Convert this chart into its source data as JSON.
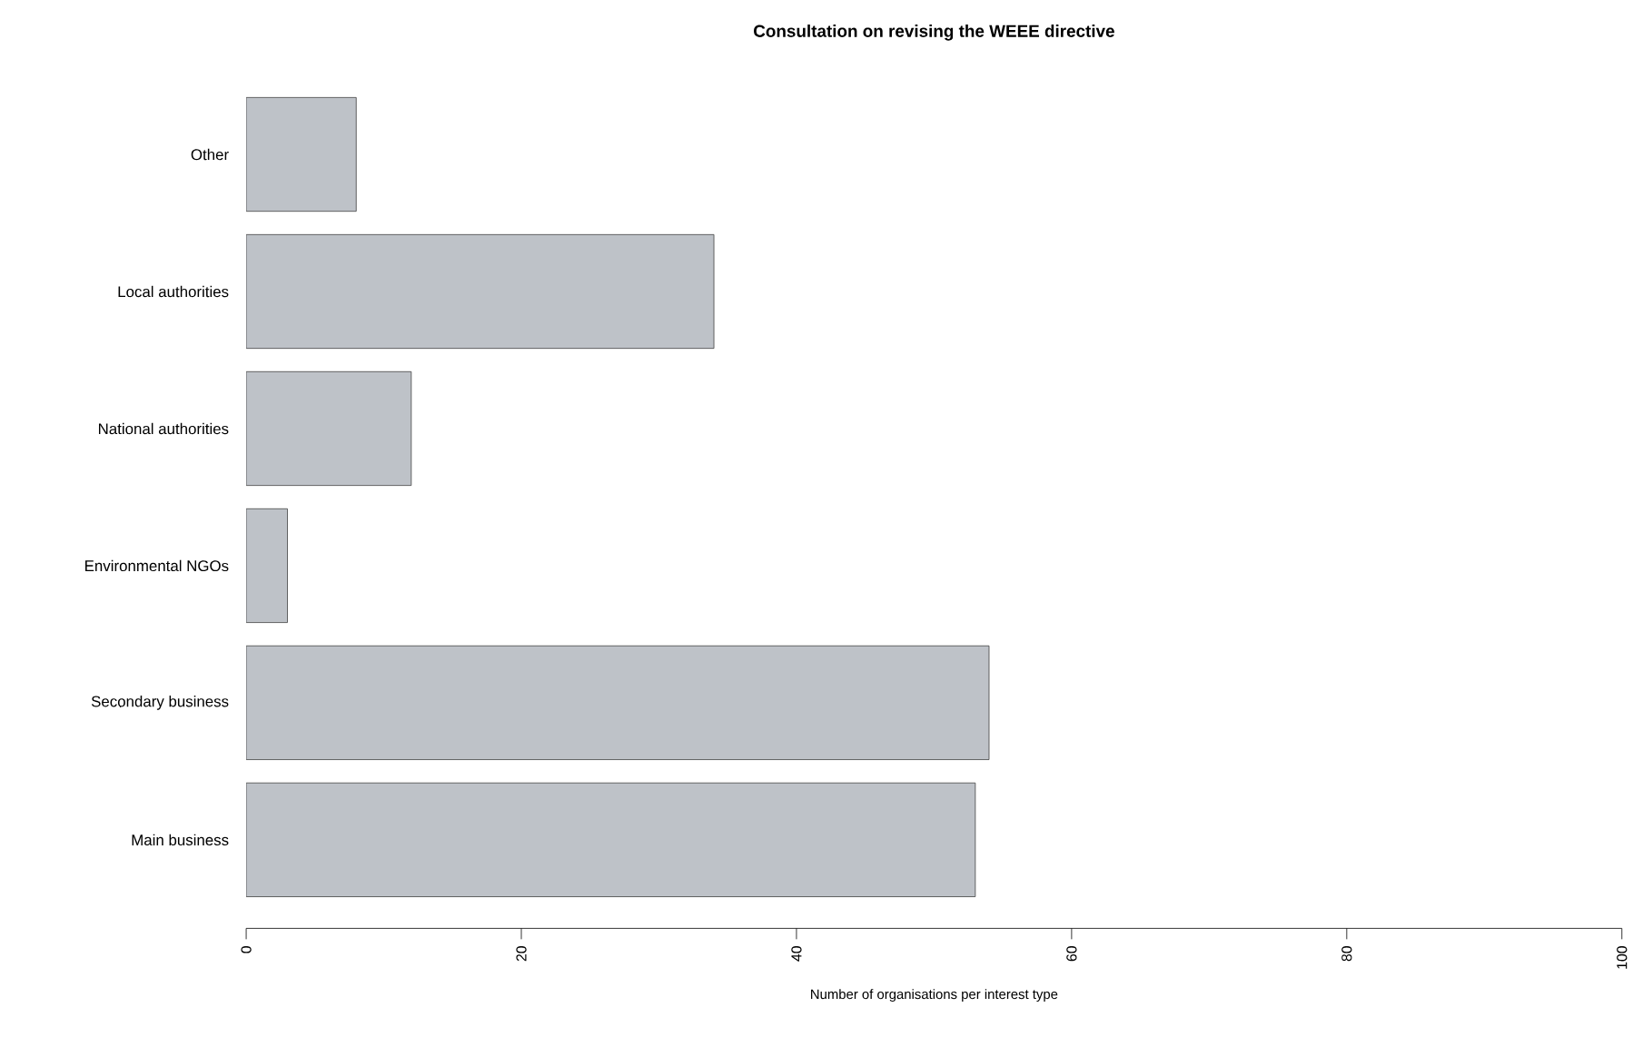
{
  "chart_data": {
    "type": "bar",
    "orientation": "horizontal",
    "title": "Consultation on revising the WEEE directive",
    "xlabel": "Number of organisations per interest type",
    "categories": [
      "Other",
      "Local authorities",
      "National authorities",
      "Environmental NGOs",
      "Secondary business",
      "Main business"
    ],
    "values": [
      8,
      34,
      12,
      3,
      54,
      53
    ],
    "color": "#bec2c8",
    "xlim": [
      0,
      100
    ],
    "xticks": [
      0,
      20,
      40,
      60,
      80,
      100
    ]
  }
}
